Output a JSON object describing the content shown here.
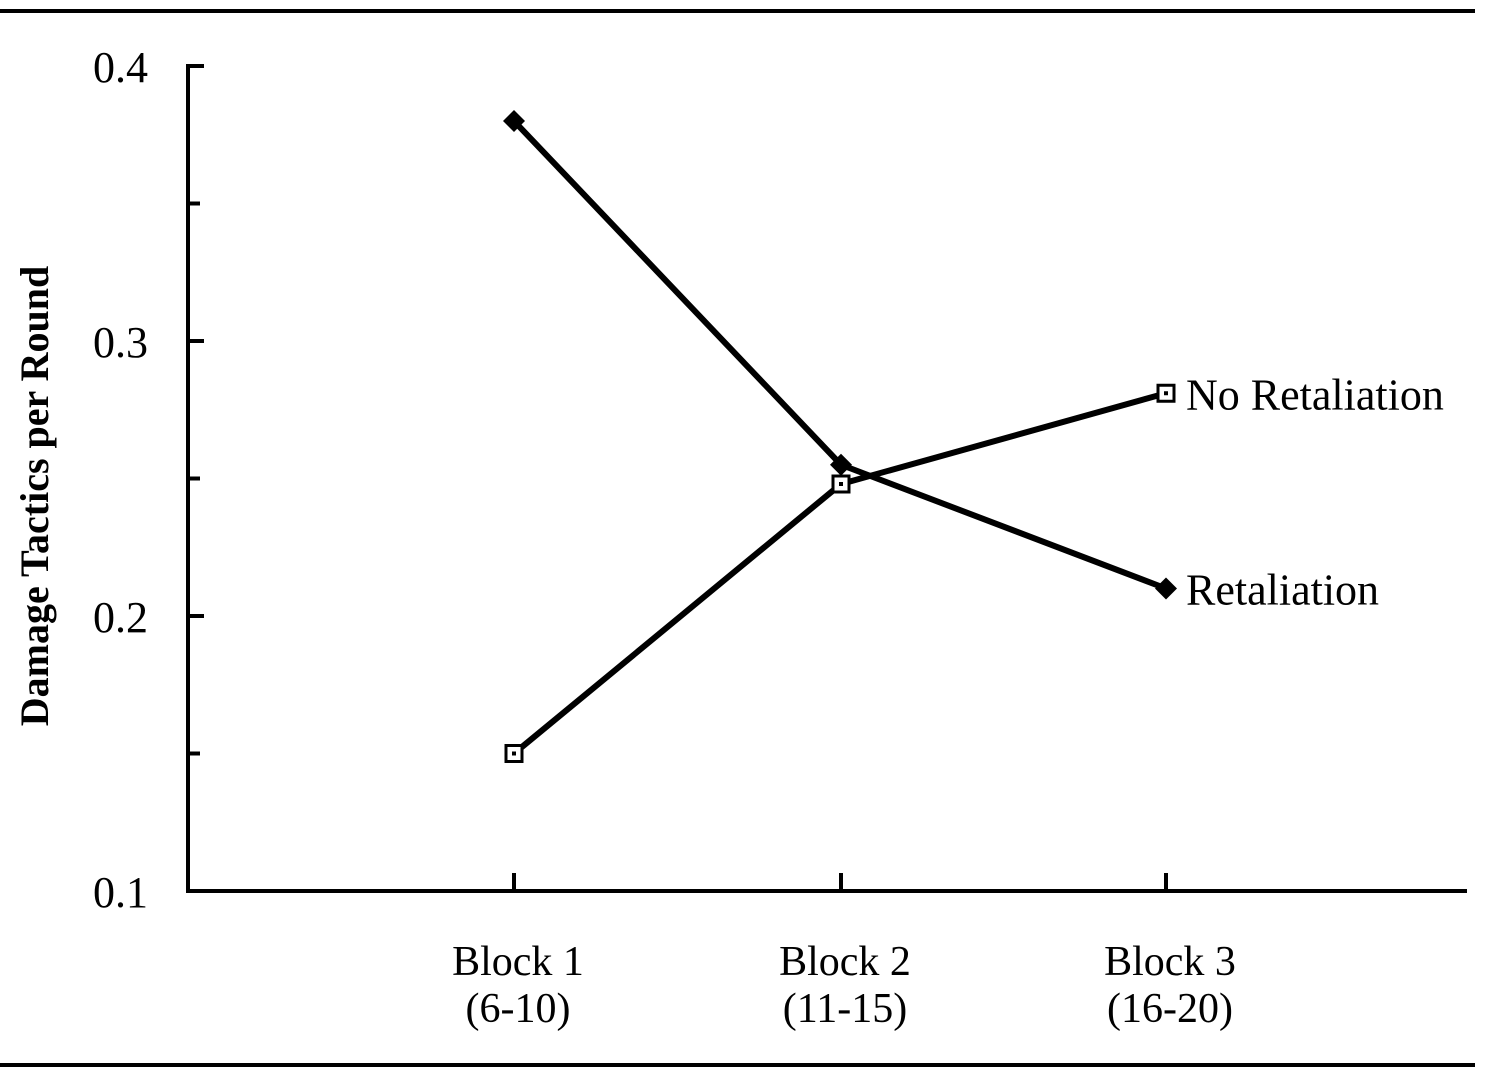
{
  "chart_data": {
    "type": "line",
    "ylabel": "Damage Tactics per Round",
    "xlabel": "",
    "ylim": [
      0.1,
      0.4
    ],
    "yticks_major": [
      "0.1",
      "0.2",
      "0.3",
      "0.4"
    ],
    "yticks_values": [
      0.1,
      0.2,
      0.3,
      0.4
    ],
    "yticks_minor_values": [
      0.15,
      0.25,
      0.35
    ],
    "categories": [
      {
        "line1": "Block 1",
        "line2": "(6-10)"
      },
      {
        "line1": "Block 2",
        "line2": "(11-15)"
      },
      {
        "line1": "Block 3",
        "line2": "(16-20)"
      }
    ],
    "series": [
      {
        "name": "No Retaliation",
        "marker": "square-open",
        "values": [
          0.15,
          0.248,
          0.281
        ]
      },
      {
        "name": "Retaliation",
        "marker": "diamond-filled",
        "values": [
          0.38,
          0.255,
          0.21
        ]
      }
    ],
    "legend": "inline-right-of-lines",
    "grid": false
  }
}
